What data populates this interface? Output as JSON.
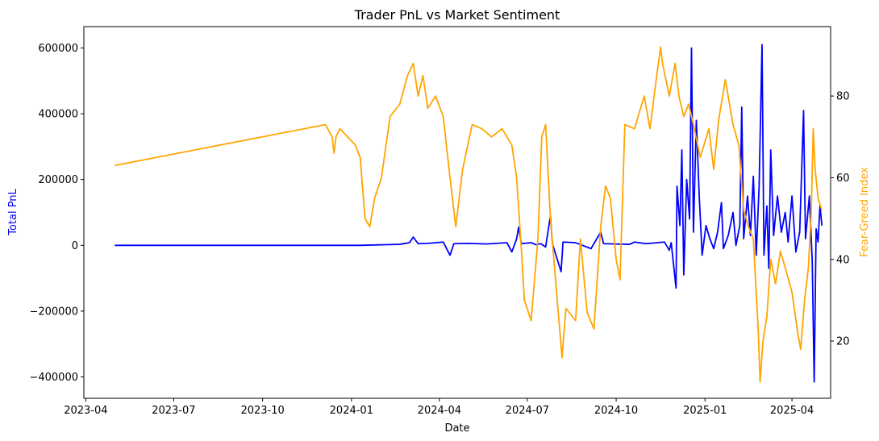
{
  "chart_data": {
    "type": "line",
    "title": "Trader PnL vs Market Sentiment",
    "xlabel": "Date",
    "ylabel_left": "Total PnL",
    "ylabel_right": "Fear-Greed Index",
    "xlim": [
      "2023-03-30",
      "2025-05-11"
    ],
    "ylim_left": [
      -465000,
      665000
    ],
    "ylim_right": [
      6,
      97
    ],
    "x_ticks": [
      "2023-04",
      "2023-07",
      "2023-10",
      "2024-01",
      "2024-04",
      "2024-07",
      "2024-10",
      "2025-01",
      "2025-04"
    ],
    "y_ticks_left": [
      -400000,
      -200000,
      0,
      200000,
      400000,
      600000
    ],
    "y_ticks_right": [
      20,
      40,
      60,
      80
    ],
    "grid": false,
    "colors": {
      "pnl": "#0000ff",
      "fear_greed": "#ffa500",
      "left_axis_label": "#0000ff",
      "right_axis_label": "#ffa500"
    },
    "series": [
      {
        "axis": "left",
        "color": "#0000ff",
        "points": [
          [
            "2023-05-01",
            0
          ],
          [
            "2023-08-01",
            0
          ],
          [
            "2023-11-01",
            0
          ],
          [
            "2023-12-15",
            0
          ],
          [
            "2024-01-10",
            0
          ],
          [
            "2024-02-05",
            2000
          ],
          [
            "2024-02-20",
            3000
          ],
          [
            "2024-03-01",
            8000
          ],
          [
            "2024-03-05",
            25000
          ],
          [
            "2024-03-10",
            5000
          ],
          [
            "2024-03-20",
            6000
          ],
          [
            "2024-04-05",
            10000
          ],
          [
            "2024-04-12",
            -30000
          ],
          [
            "2024-04-16",
            5000
          ],
          [
            "2024-05-01",
            6000
          ],
          [
            "2024-05-20",
            4000
          ],
          [
            "2024-06-10",
            8000
          ],
          [
            "2024-06-15",
            -20000
          ],
          [
            "2024-06-20",
            20000
          ],
          [
            "2024-06-22",
            55000
          ],
          [
            "2024-06-25",
            5000
          ],
          [
            "2024-07-05",
            8000
          ],
          [
            "2024-07-10",
            2000
          ],
          [
            "2024-07-15",
            5000
          ],
          [
            "2024-07-20",
            -5000
          ],
          [
            "2024-07-25",
            90000
          ],
          [
            "2024-07-27",
            5000
          ],
          [
            "2024-08-05",
            -80000
          ],
          [
            "2024-08-07",
            10000
          ],
          [
            "2024-08-20",
            8000
          ],
          [
            "2024-09-05",
            -10000
          ],
          [
            "2024-09-15",
            40000
          ],
          [
            "2024-09-18",
            5000
          ],
          [
            "2024-10-15",
            3000
          ],
          [
            "2024-10-20",
            10000
          ],
          [
            "2024-11-01",
            5000
          ],
          [
            "2024-11-20",
            10000
          ],
          [
            "2024-11-25",
            -15000
          ],
          [
            "2024-11-27",
            8000
          ],
          [
            "2024-12-02",
            -130000
          ],
          [
            "2024-12-03",
            180000
          ],
          [
            "2024-12-06",
            60000
          ],
          [
            "2024-12-08",
            290000
          ],
          [
            "2024-12-10",
            -90000
          ],
          [
            "2024-12-13",
            200000
          ],
          [
            "2024-12-16",
            80000
          ],
          [
            "2024-12-18",
            600000
          ],
          [
            "2024-12-20",
            40000
          ],
          [
            "2024-12-23",
            380000
          ],
          [
            "2024-12-26",
            150000
          ],
          [
            "2024-12-29",
            -30000
          ],
          [
            "2025-01-02",
            60000
          ],
          [
            "2025-01-06",
            20000
          ],
          [
            "2025-01-10",
            -10000
          ],
          [
            "2025-01-14",
            40000
          ],
          [
            "2025-01-18",
            130000
          ],
          [
            "2025-01-20",
            -10000
          ],
          [
            "2025-01-25",
            30000
          ],
          [
            "2025-01-30",
            100000
          ],
          [
            "2025-02-02",
            0
          ],
          [
            "2025-02-06",
            60000
          ],
          [
            "2025-02-08",
            420000
          ],
          [
            "2025-02-10",
            20000
          ],
          [
            "2025-02-14",
            150000
          ],
          [
            "2025-02-17",
            30000
          ],
          [
            "2025-02-20",
            210000
          ],
          [
            "2025-02-23",
            -30000
          ],
          [
            "2025-02-26",
            180000
          ],
          [
            "2025-03-01",
            610000
          ],
          [
            "2025-03-03",
            -30000
          ],
          [
            "2025-03-06",
            120000
          ],
          [
            "2025-03-08",
            -70000
          ],
          [
            "2025-03-10",
            290000
          ],
          [
            "2025-03-13",
            30000
          ],
          [
            "2025-03-17",
            150000
          ],
          [
            "2025-03-21",
            40000
          ],
          [
            "2025-03-25",
            100000
          ],
          [
            "2025-03-28",
            10000
          ],
          [
            "2025-04-01",
            150000
          ],
          [
            "2025-04-05",
            -20000
          ],
          [
            "2025-04-09",
            40000
          ],
          [
            "2025-04-13",
            410000
          ],
          [
            "2025-04-15",
            20000
          ],
          [
            "2025-04-19",
            150000
          ],
          [
            "2025-04-22",
            -50000
          ],
          [
            "2025-04-24",
            -415000
          ],
          [
            "2025-04-26",
            50000
          ],
          [
            "2025-04-28",
            10000
          ],
          [
            "2025-04-30",
            120000
          ],
          [
            "2025-05-02",
            60000
          ]
        ]
      },
      {
        "axis": "right",
        "color": "#ffa500",
        "points": [
          [
            "2023-05-01",
            63
          ],
          [
            "2023-12-05",
            73
          ],
          [
            "2023-12-12",
            70
          ],
          [
            "2023-12-14",
            66
          ],
          [
            "2023-12-16",
            70
          ],
          [
            "2023-12-20",
            72
          ],
          [
            "2024-01-05",
            68
          ],
          [
            "2024-01-10",
            65
          ],
          [
            "2024-01-15",
            50
          ],
          [
            "2024-01-20",
            48
          ],
          [
            "2024-01-25",
            55
          ],
          [
            "2024-02-01",
            60
          ],
          [
            "2024-02-10",
            75
          ],
          [
            "2024-02-20",
            78
          ],
          [
            "2024-02-28",
            85
          ],
          [
            "2024-03-05",
            88
          ],
          [
            "2024-03-10",
            80
          ],
          [
            "2024-03-15",
            85
          ],
          [
            "2024-03-20",
            77
          ],
          [
            "2024-03-28",
            80
          ],
          [
            "2024-04-05",
            75
          ],
          [
            "2024-04-12",
            60
          ],
          [
            "2024-04-18",
            48
          ],
          [
            "2024-04-25",
            62
          ],
          [
            "2024-05-05",
            73
          ],
          [
            "2024-05-15",
            72
          ],
          [
            "2024-05-25",
            70
          ],
          [
            "2024-06-05",
            72
          ],
          [
            "2024-06-15",
            68
          ],
          [
            "2024-06-20",
            60
          ],
          [
            "2024-06-25",
            42
          ],
          [
            "2024-06-28",
            30
          ],
          [
            "2024-07-05",
            25
          ],
          [
            "2024-07-12",
            45
          ],
          [
            "2024-07-16",
            70
          ],
          [
            "2024-07-20",
            73
          ],
          [
            "2024-07-25",
            50
          ],
          [
            "2024-08-01",
            30
          ],
          [
            "2024-08-06",
            16
          ],
          [
            "2024-08-10",
            28
          ],
          [
            "2024-08-20",
            25
          ],
          [
            "2024-08-25",
            45
          ],
          [
            "2024-09-01",
            27
          ],
          [
            "2024-09-08",
            23
          ],
          [
            "2024-09-15",
            48
          ],
          [
            "2024-09-20",
            58
          ],
          [
            "2024-09-25",
            55
          ],
          [
            "2024-10-01",
            40
          ],
          [
            "2024-10-05",
            35
          ],
          [
            "2024-10-10",
            73
          ],
          [
            "2024-10-20",
            72
          ],
          [
            "2024-10-30",
            80
          ],
          [
            "2024-11-05",
            72
          ],
          [
            "2024-11-12",
            85
          ],
          [
            "2024-11-16",
            92
          ],
          [
            "2024-11-18",
            88
          ],
          [
            "2024-11-25",
            80
          ],
          [
            "2024-12-01",
            88
          ],
          [
            "2024-12-05",
            80
          ],
          [
            "2024-12-10",
            75
          ],
          [
            "2024-12-15",
            78
          ],
          [
            "2024-12-20",
            73
          ],
          [
            "2024-12-27",
            65
          ],
          [
            "2025-01-05",
            72
          ],
          [
            "2025-01-10",
            62
          ],
          [
            "2025-01-15",
            74
          ],
          [
            "2025-01-22",
            84
          ],
          [
            "2025-01-30",
            73
          ],
          [
            "2025-02-05",
            68
          ],
          [
            "2025-02-10",
            52
          ],
          [
            "2025-02-15",
            48
          ],
          [
            "2025-02-20",
            45
          ],
          [
            "2025-02-25",
            23
          ],
          [
            "2025-02-27",
            10
          ],
          [
            "2025-03-02",
            20
          ],
          [
            "2025-03-06",
            26
          ],
          [
            "2025-03-10",
            40
          ],
          [
            "2025-03-15",
            34
          ],
          [
            "2025-03-20",
            42
          ],
          [
            "2025-03-25",
            38
          ],
          [
            "2025-04-01",
            32
          ],
          [
            "2025-04-07",
            22
          ],
          [
            "2025-04-10",
            18
          ],
          [
            "2025-04-14",
            30
          ],
          [
            "2025-04-18",
            38
          ],
          [
            "2025-04-21",
            52
          ],
          [
            "2025-04-23",
            72
          ],
          [
            "2025-04-25",
            62
          ],
          [
            "2025-04-28",
            55
          ],
          [
            "2025-05-02",
            52
          ]
        ]
      }
    ]
  }
}
